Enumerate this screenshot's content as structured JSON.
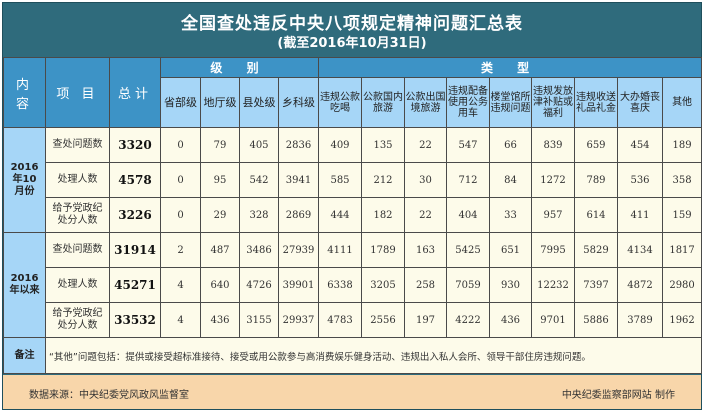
{
  "title": "全国查处违反中央八项规定精神问题汇总表",
  "subtitle": "(截至2016年10月31日)",
  "header": {
    "content": "内 容",
    "item": "项 目",
    "total": "总计",
    "level_group": "级 别",
    "type_group": "类 型",
    "levels": [
      "省部级",
      "地厅级",
      "县处级",
      "乡科级"
    ],
    "types": [
      "违规公款吃喝",
      "公款国内旅游",
      "公款出国境旅游",
      "违规配备使用公务用车",
      "楼堂馆所违规问题",
      "违规发放津补贴或福利",
      "违规收送礼品礼金",
      "大办婚丧喜庆",
      "其他"
    ]
  },
  "sections": [
    {
      "period": "2016年10月份",
      "rows": [
        {
          "item": "查处问题数",
          "total": "3320",
          "levels": [
            "0",
            "79",
            "405",
            "2836"
          ],
          "types": [
            "409",
            "135",
            "22",
            "547",
            "66",
            "839",
            "659",
            "454",
            "189"
          ]
        },
        {
          "item": "处理人数",
          "total": "4578",
          "levels": [
            "0",
            "95",
            "542",
            "3941"
          ],
          "types": [
            "585",
            "212",
            "30",
            "712",
            "84",
            "1272",
            "789",
            "536",
            "358"
          ]
        },
        {
          "item": "给予党政纪处分人数",
          "total": "3226",
          "levels": [
            "0",
            "29",
            "328",
            "2869"
          ],
          "types": [
            "444",
            "182",
            "22",
            "404",
            "33",
            "957",
            "614",
            "411",
            "159"
          ]
        }
      ]
    },
    {
      "period": "2016年以来",
      "rows": [
        {
          "item": "查处问题数",
          "total": "31914",
          "levels": [
            "2",
            "487",
            "3486",
            "27939"
          ],
          "types": [
            "4111",
            "1789",
            "163",
            "5425",
            "651",
            "7995",
            "5829",
            "4134",
            "1817"
          ]
        },
        {
          "item": "处理人数",
          "total": "45271",
          "levels": [
            "4",
            "640",
            "4726",
            "39901"
          ],
          "types": [
            "6338",
            "3205",
            "258",
            "7059",
            "930",
            "12232",
            "7397",
            "4872",
            "2980"
          ]
        },
        {
          "item": "给予党政纪处分人数",
          "total": "33532",
          "levels": [
            "4",
            "436",
            "3155",
            "29937"
          ],
          "types": [
            "4783",
            "2556",
            "197",
            "4222",
            "436",
            "9701",
            "5886",
            "3789",
            "1962"
          ]
        }
      ]
    }
  ],
  "remark": {
    "label": "备注",
    "text": "“其他”问题包括：提供或接受超标准接待、接受或用公款参与高消费娱乐健身活动、违规出入私人会所、领导干部住房违规问题。"
  },
  "footer": {
    "source": "数据来源：中央纪委党风政风监督室",
    "maker": "中央纪委监察部网站 制作"
  }
}
